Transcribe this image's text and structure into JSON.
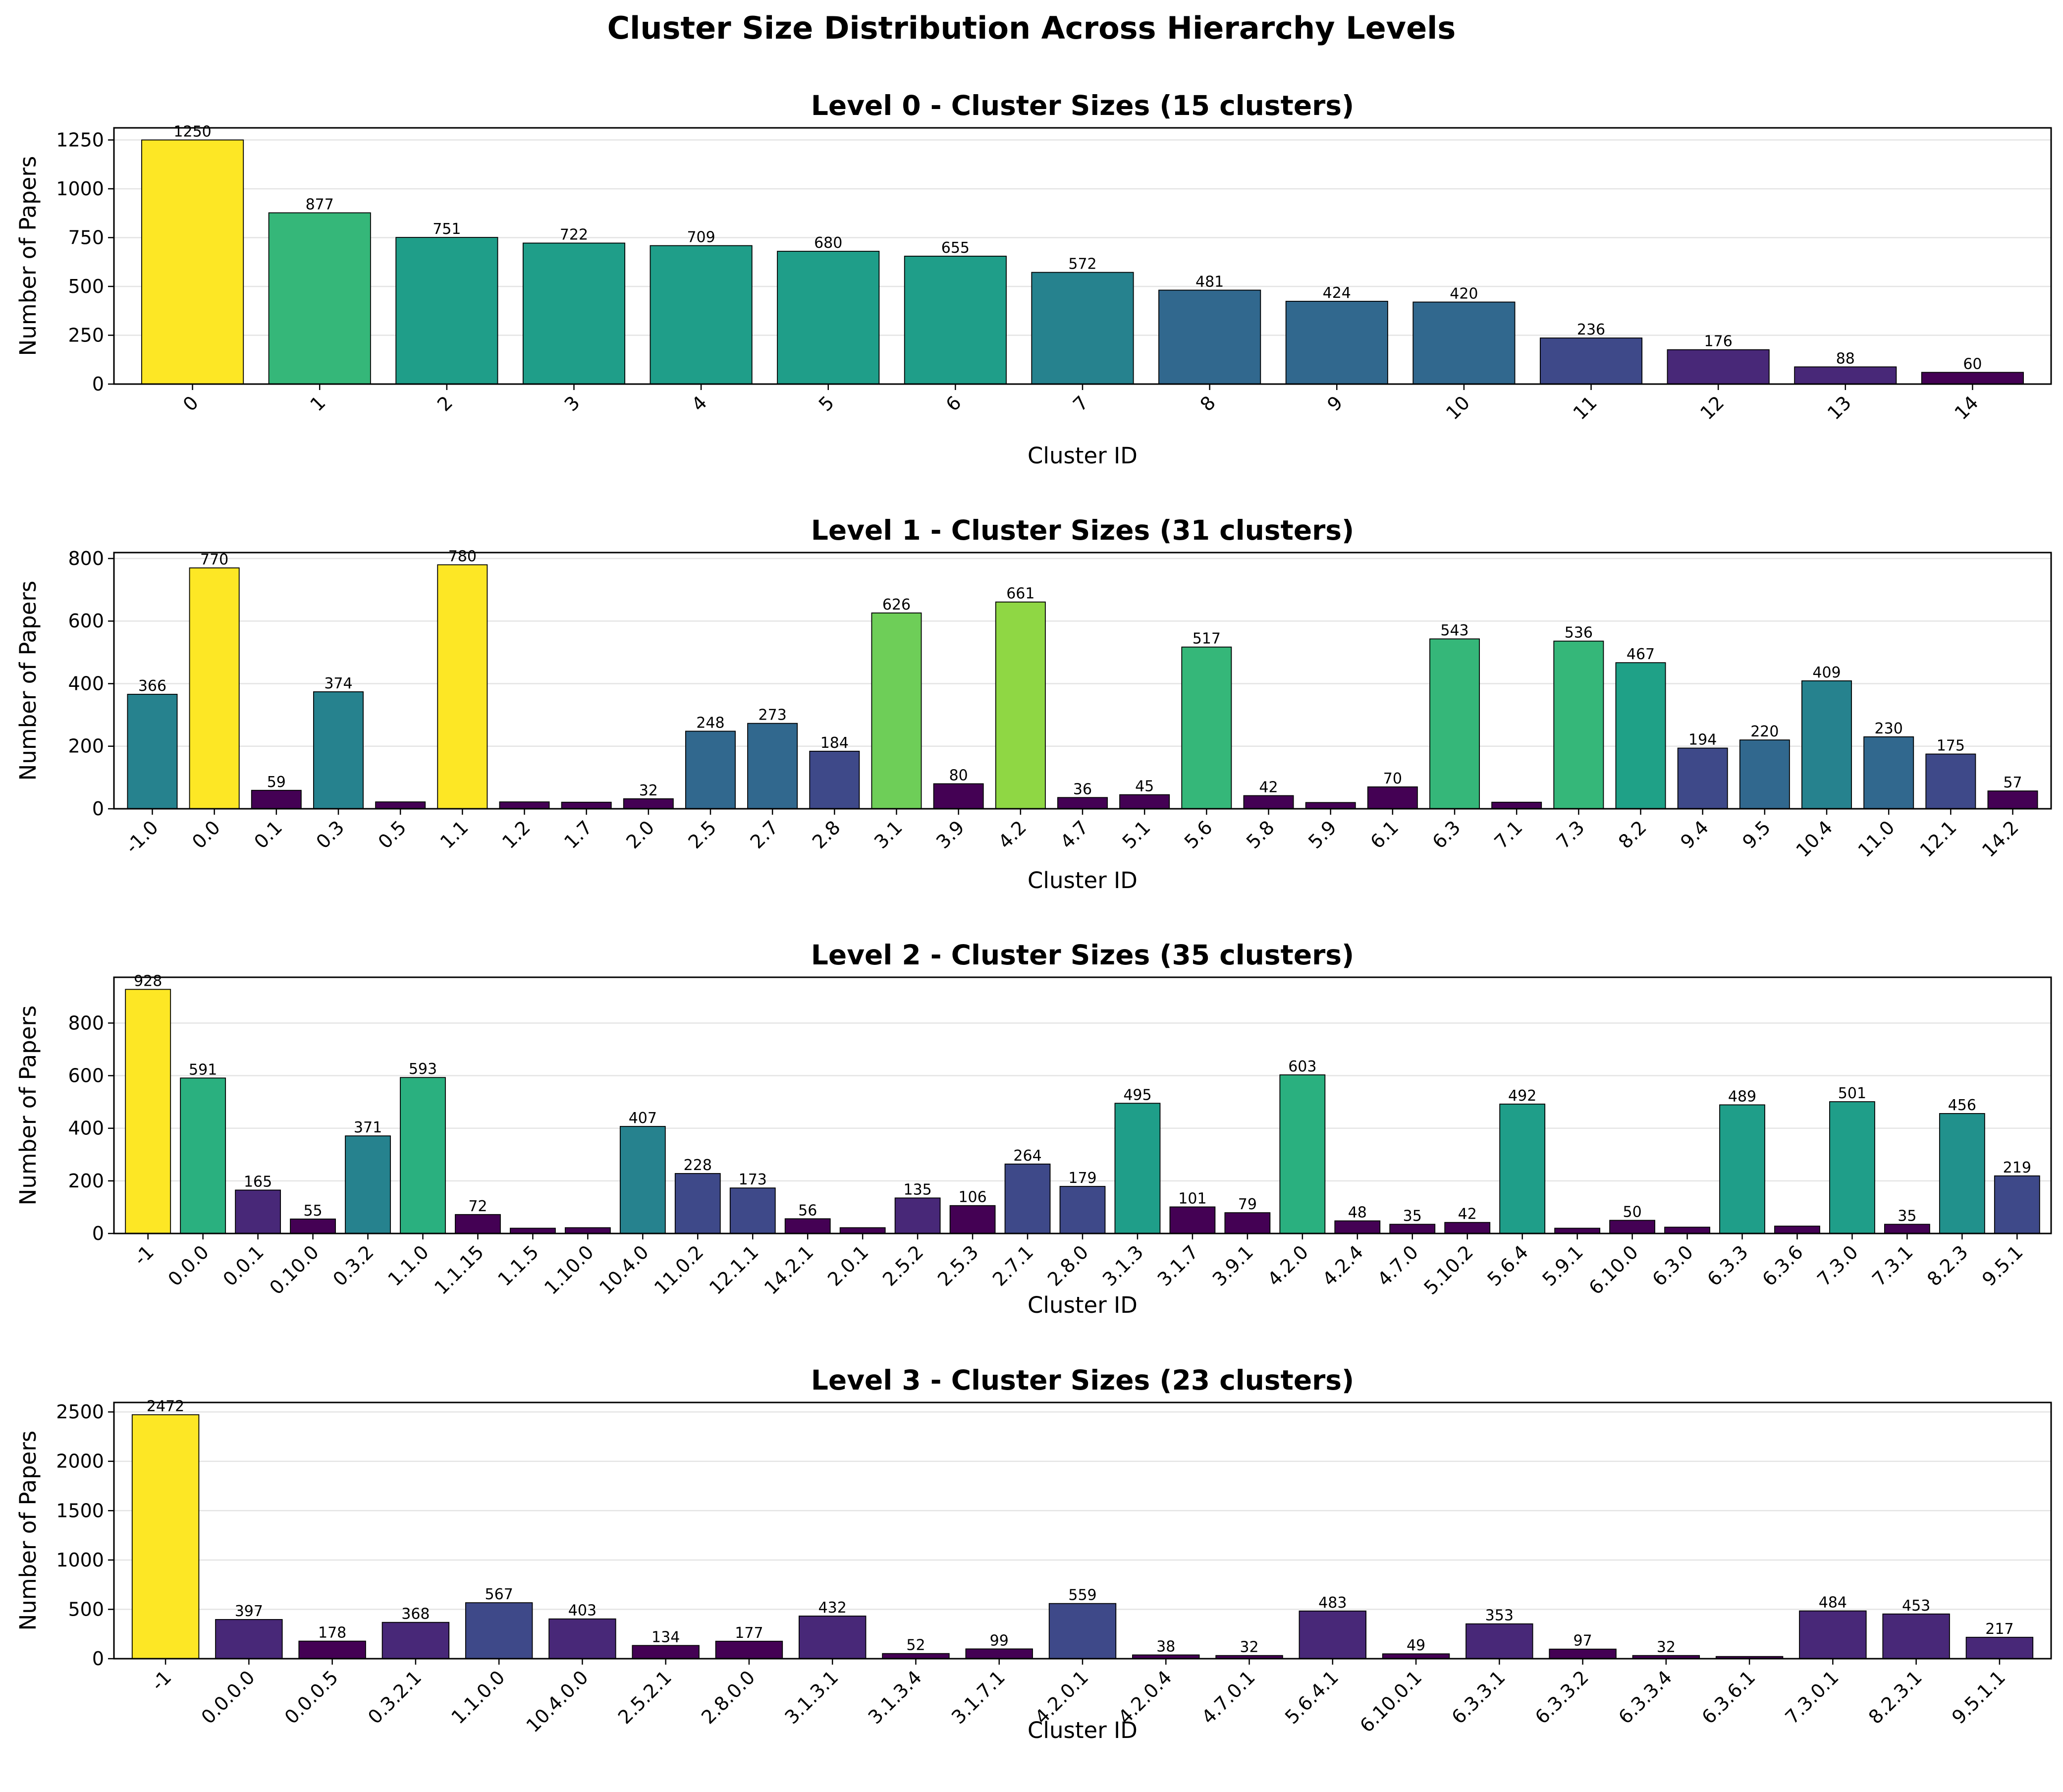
{
  "figure_title": "Cluster Size Distribution Across Hierarchy Levels",
  "colormap": [
    "#440154",
    "#482878",
    "#3e4989",
    "#31688e",
    "#26828e",
    "#1f9e89",
    "#35b779",
    "#6ece58",
    "#b5de2b",
    "#fde725"
  ],
  "chart_data": [
    {
      "type": "bar",
      "title": "Level 0 - Cluster Sizes (15 clusters)",
      "xlabel": "Cluster ID",
      "ylabel": "Number of Papers",
      "grid": "y",
      "ylim": [
        0,
        1312
      ],
      "yticks": [
        0,
        250,
        500,
        750,
        1000,
        1250
      ],
      "categories": [
        "0",
        "1",
        "2",
        "3",
        "4",
        "5",
        "6",
        "7",
        "8",
        "9",
        "10",
        "11",
        "12",
        "13",
        "14"
      ],
      "values": [
        1250,
        877,
        751,
        722,
        709,
        680,
        655,
        572,
        481,
        424,
        420,
        236,
        176,
        88,
        60
      ],
      "labels": [
        "1250",
        "877",
        "751",
        "722",
        "709",
        "680",
        "655",
        "572",
        "481",
        "424",
        "420",
        "236",
        "176",
        "88",
        "60"
      ],
      "color_max": 1250
    },
    {
      "type": "bar",
      "title": "Level 1 - Cluster Sizes (31 clusters)",
      "xlabel": "Cluster ID",
      "ylabel": "Number of Papers",
      "grid": "y",
      "ylim": [
        0,
        819
      ],
      "yticks": [
        0,
        200,
        400,
        600,
        800
      ],
      "categories": [
        "-1.0",
        "0.0",
        "0.1",
        "0.3",
        "0.5",
        "1.1",
        "1.2",
        "1.7",
        "2.0",
        "2.5",
        "2.7",
        "2.8",
        "3.1",
        "3.9",
        "4.2",
        "4.7",
        "5.1",
        "5.6",
        "5.8",
        "5.9",
        "6.1",
        "6.3",
        "7.1",
        "7.3",
        "8.2",
        "9.4",
        "9.5",
        "10.4",
        "11.0",
        "12.1",
        "14.2"
      ],
      "values": [
        366,
        770,
        59,
        374,
        22,
        780,
        22,
        21,
        32,
        248,
        273,
        184,
        626,
        80,
        661,
        36,
        45,
        517,
        42,
        20,
        70,
        543,
        21,
        536,
        467,
        194,
        220,
        409,
        230,
        175,
        57
      ],
      "labels": [
        "366",
        "770",
        "59",
        "374",
        "",
        "780",
        "",
        "",
        "32",
        "248",
        "273",
        "184",
        "626",
        "80",
        "661",
        "36",
        "45",
        "517",
        "42",
        "",
        "70",
        "543",
        "",
        "536",
        "467",
        "194",
        "220",
        "409",
        "230",
        "175",
        "57"
      ],
      "colors": [
        "#26828e",
        "#fde725",
        "#440154",
        "#26828e",
        "#440154",
        "#fde725",
        "#440154",
        "#440154",
        "#440154",
        "#31688e",
        "#31688e",
        "#3e4989",
        "#6ece58",
        "#440154",
        "#8fd744",
        "#440154",
        "#440154",
        "#35b779",
        "#440154",
        "#440154",
        "#440154",
        "#35b779",
        "#440154",
        "#35b779",
        "#1fa187",
        "#3e4989",
        "#31688e",
        "#26828e",
        "#31688e",
        "#3e4989",
        "#440154"
      ]
    },
    {
      "type": "bar",
      "title": "Level 2 - Cluster Sizes (35 clusters)",
      "xlabel": "Cluster ID",
      "ylabel": "Number of Papers",
      "grid": "y",
      "ylim": [
        0,
        974
      ],
      "yticks": [
        0,
        200,
        400,
        600,
        800
      ],
      "categories": [
        "-1",
        "0.0.0",
        "0.0.1",
        "0.10.0",
        "0.3.2",
        "1.1.0",
        "1.1.15",
        "1.1.5",
        "1.10.0",
        "10.4.0",
        "11.0.2",
        "12.1.1",
        "14.2.1",
        "2.0.1",
        "2.5.2",
        "2.5.3",
        "2.7.1",
        "2.8.0",
        "3.1.3",
        "3.1.7",
        "3.9.1",
        "4.2.0",
        "4.2.4",
        "4.7.0",
        "5.10.2",
        "5.6.4",
        "5.9.1",
        "6.10.0",
        "6.3.0",
        "6.3.3",
        "6.3.6",
        "7.3.0",
        "7.3.1",
        "8.2.3",
        "9.5.1"
      ],
      "values": [
        928,
        591,
        165,
        55,
        371,
        593,
        72,
        20,
        22,
        407,
        228,
        173,
        56,
        22,
        135,
        106,
        264,
        179,
        495,
        101,
        79,
        603,
        48,
        35,
        42,
        492,
        20,
        50,
        24,
        489,
        28,
        501,
        35,
        456,
        219
      ],
      "labels": [
        "928",
        "591",
        "165",
        "55",
        "371",
        "593",
        "72",
        "",
        "",
        "407",
        "228",
        "173",
        "56",
        "",
        "135",
        "106",
        "264",
        "179",
        "495",
        "101",
        "79",
        "603",
        "48",
        "35",
        "42",
        "492",
        "",
        "50",
        "",
        "489",
        "",
        "501",
        "35",
        "456",
        "219"
      ],
      "colors": [
        "#fde725",
        "#2ab07f",
        "#482878",
        "#440154",
        "#26828e",
        "#2ab07f",
        "#440154",
        "#440154",
        "#440154",
        "#26828e",
        "#3e4989",
        "#3e4989",
        "#440154",
        "#440154",
        "#482878",
        "#440154",
        "#3e4989",
        "#3e4989",
        "#1f9e89",
        "#440154",
        "#440154",
        "#2ab07f",
        "#440154",
        "#440154",
        "#440154",
        "#1f9e89",
        "#440154",
        "#440154",
        "#440154",
        "#1f9e89",
        "#440154",
        "#1f9e89",
        "#440154",
        "#21918c",
        "#3e4989"
      ]
    },
    {
      "type": "bar",
      "title": "Level 3 - Cluster Sizes (23 clusters)",
      "xlabel": "Cluster ID",
      "ylabel": "Number of Papers",
      "grid": "y",
      "ylim": [
        0,
        2596
      ],
      "yticks": [
        0,
        500,
        1000,
        1500,
        2000,
        2500
      ],
      "categories": [
        "-1",
        "0.0.0.0",
        "0.0.0.5",
        "0.3.2.1",
        "1.1.0.0",
        "10.4.0.0",
        "2.5.2.1",
        "2.8.0.0",
        "3.1.3.1",
        "3.1.3.4",
        "3.1.7.1",
        "4.2.0.1",
        "4.2.0.4",
        "4.7.0.1",
        "5.6.4.1",
        "6.10.0.1",
        "6.3.3.1",
        "6.3.3.2",
        "6.3.3.4",
        "6.3.6.1",
        "7.3.0.1",
        "8.2.3.1",
        "9.5.1.1"
      ],
      "values": [
        2472,
        397,
        178,
        368,
        567,
        403,
        134,
        177,
        432,
        52,
        99,
        559,
        38,
        32,
        483,
        49,
        353,
        97,
        32,
        22,
        484,
        453,
        217
      ],
      "labels": [
        "2472",
        "397",
        "178",
        "368",
        "567",
        "403",
        "134",
        "177",
        "432",
        "52",
        "99",
        "559",
        "38",
        "32",
        "483",
        "49",
        "353",
        "97",
        "32",
        "",
        "484",
        "453",
        "217"
      ],
      "colors": [
        "#fde725",
        "#482878",
        "#440154",
        "#482878",
        "#3e4989",
        "#482878",
        "#440154",
        "#440154",
        "#482878",
        "#440154",
        "#440154",
        "#3e4989",
        "#440154",
        "#440154",
        "#482878",
        "#440154",
        "#482878",
        "#440154",
        "#440154",
        "#440154",
        "#482878",
        "#482878",
        "#482878"
      ]
    }
  ]
}
